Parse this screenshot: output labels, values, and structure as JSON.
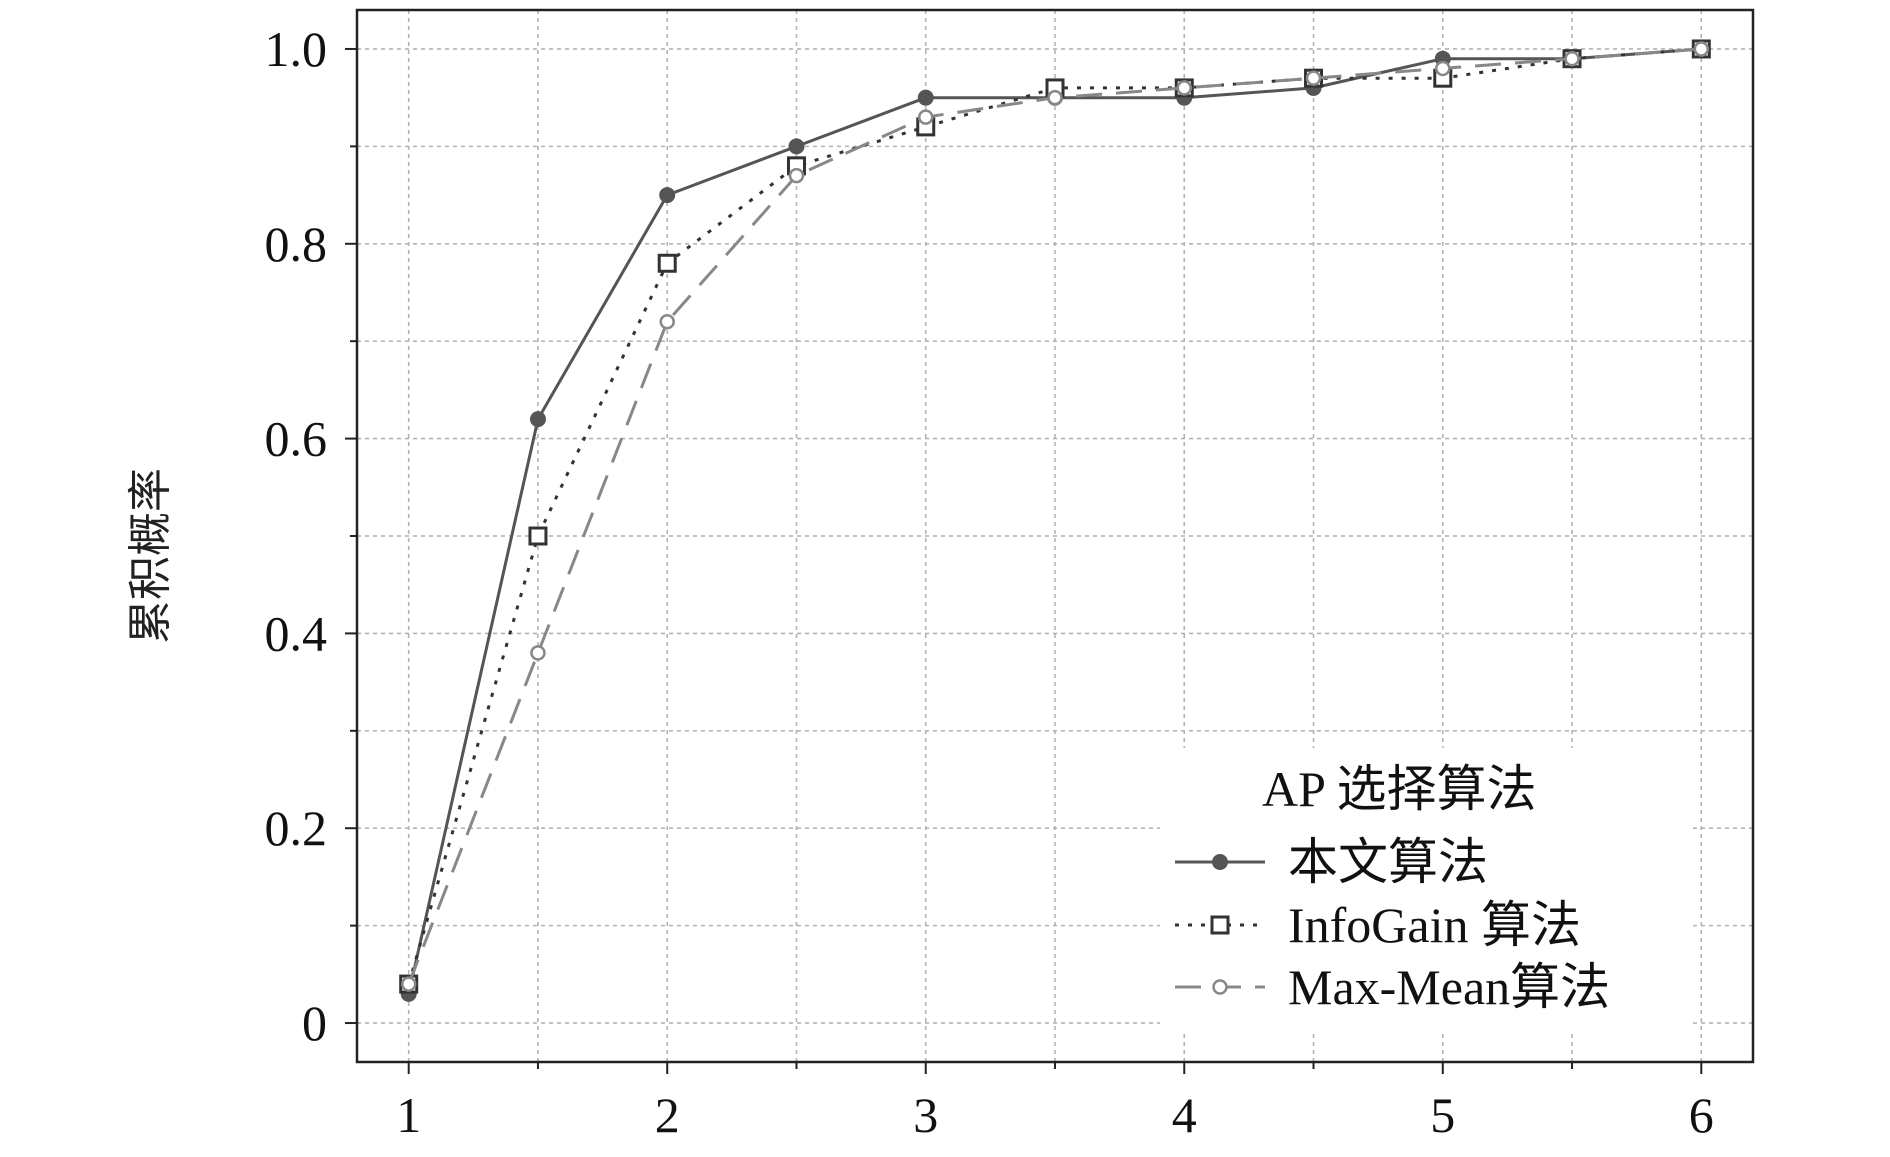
{
  "chart_data": {
    "type": "line",
    "title": "",
    "xlabel": "",
    "ylabel": "累积概率",
    "xlim": [
      0.8,
      6.2
    ],
    "ylim": [
      -0.04,
      1.04
    ],
    "x_ticks": [
      1,
      2,
      3,
      4,
      5,
      6
    ],
    "x_minor_ticks": [
      1.5,
      2.5,
      3.5,
      4.5,
      5.5
    ],
    "y_ticks": [
      0,
      0.2,
      0.4,
      0.6,
      0.8,
      1.0
    ],
    "y_tick_labels": [
      "0",
      "0.2",
      "0.4",
      "0.6",
      "0.8",
      "1.0"
    ],
    "y_minor_ticks": [
      0.1,
      0.3,
      0.5,
      0.7,
      0.9
    ],
    "grid": true,
    "legend": {
      "title": "AP 选择算法",
      "placement": "bottom-right"
    },
    "series": [
      {
        "name": "本文算法",
        "color": "#555555",
        "line_style": "solid",
        "marker": "filled-circle",
        "x": [
          1,
          1.5,
          2,
          2.5,
          3,
          3.5,
          4,
          4.5,
          5,
          5.5,
          6
        ],
        "y": [
          0.03,
          0.62,
          0.85,
          0.9,
          0.95,
          0.95,
          0.95,
          0.96,
          0.99,
          0.99,
          1.0
        ]
      },
      {
        "name": "InfoGain 算法",
        "color": "#333333",
        "line_style": "dotted",
        "marker": "open-square",
        "x": [
          1,
          1.5,
          2,
          2.5,
          3,
          3.5,
          4,
          4.5,
          5,
          5.5,
          6
        ],
        "y": [
          0.04,
          0.5,
          0.78,
          0.88,
          0.92,
          0.96,
          0.96,
          0.97,
          0.97,
          0.99,
          1.0
        ]
      },
      {
        "name": "Max-Mean算法",
        "color": "#888888",
        "line_style": "dashed",
        "marker": "open-circle",
        "x": [
          1,
          1.5,
          2,
          2.5,
          3,
          3.5,
          4,
          4.5,
          5,
          5.5,
          6
        ],
        "y": [
          0.04,
          0.38,
          0.72,
          0.87,
          0.93,
          0.95,
          0.96,
          0.97,
          0.98,
          0.99,
          1.0
        ]
      }
    ]
  }
}
